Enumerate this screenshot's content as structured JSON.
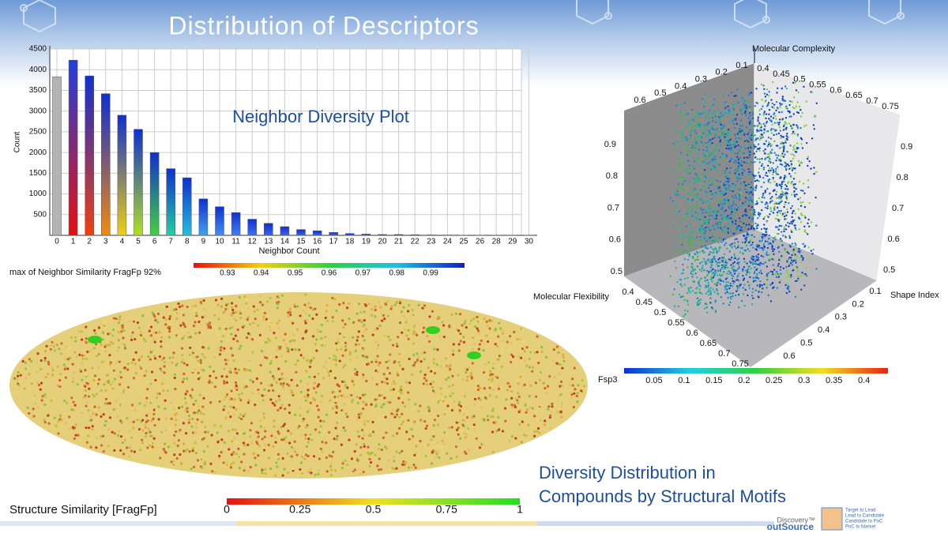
{
  "title": "Distribution of Descriptors",
  "chart_data": {
    "type": "bar",
    "title": "Neighbor Diversity Plot",
    "x_label": "Neighbor Count",
    "y_label": "Count",
    "categories": [
      "0",
      "1",
      "2",
      "3",
      "4",
      "5",
      "6",
      "7",
      "8",
      "9",
      "10",
      "11",
      "12",
      "13",
      "14",
      "15",
      "16",
      "17",
      "18",
      "19",
      "20",
      "21",
      "22",
      "23",
      "24",
      "25",
      "26",
      "28",
      "29",
      "30"
    ],
    "values": [
      3830,
      4230,
      3850,
      3420,
      2900,
      2560,
      2000,
      1610,
      1390,
      880,
      690,
      550,
      390,
      290,
      210,
      140,
      110,
      70,
      45,
      30,
      20,
      20,
      15,
      10,
      8,
      5,
      4,
      3,
      2,
      2
    ],
    "colors": [
      [
        "#b4b4b4",
        "#b4b4b4"
      ],
      [
        "#e81010",
        "#2040e0"
      ],
      [
        "#f04010",
        "#1030d0"
      ],
      [
        "#f08a10",
        "#1030d0"
      ],
      [
        "#f0d010",
        "#1030d0"
      ],
      [
        "#b0e020",
        "#1030d0"
      ],
      [
        "#40d040",
        "#1030d0"
      ],
      [
        "#20d0a0",
        "#1030d0"
      ],
      [
        "#20c0e0",
        "#1030d0"
      ],
      [
        "#40a0f0",
        "#1030d0"
      ],
      [
        "#4090f0",
        "#1030d0"
      ],
      [
        "#4080f0",
        "#1030d0"
      ],
      [
        "#4070f0",
        "#1030d0"
      ],
      [
        "#4060f0",
        "#1030d0"
      ],
      [
        "#4060f0",
        "#1030d0"
      ],
      [
        "#4060f0",
        "#1030d0"
      ],
      [
        "#4060f0",
        "#1030d0"
      ],
      [
        "#4060f0",
        "#1030d0"
      ],
      [
        "#4060f0",
        "#1030d0"
      ],
      [
        "#4060f0",
        "#1030d0"
      ],
      [
        "#4060f0",
        "#1030d0"
      ],
      [
        "#4060f0",
        "#1030d0"
      ],
      [
        "#4060f0",
        "#1030d0"
      ],
      [
        "#4060f0",
        "#1030d0"
      ],
      [
        "#4060f0",
        "#1030d0"
      ],
      [
        "#4060f0",
        "#1030d0"
      ],
      [
        "#4060f0",
        "#1030d0"
      ],
      [
        "#4060f0",
        "#1030d0"
      ],
      [
        "#4060f0",
        "#1030d0"
      ],
      [
        "#4060f0",
        "#1030d0"
      ]
    ],
    "ylim": [
      0,
      4500
    ],
    "yticks": [
      500,
      1000,
      1500,
      2000,
      2500,
      3000,
      3500,
      4000,
      4500
    ],
    "grid": true
  },
  "neighbor_colorbar": {
    "label": "max of Neighbor Similarity FragFp 92%",
    "lim": [
      0.92,
      1.0
    ],
    "ticks": [
      0.93,
      0.94,
      0.95,
      0.96,
      0.97,
      0.98,
      0.99
    ]
  },
  "scatter3d": {
    "z_label": "Molecular Complexity",
    "x_label": "Molecular Flexibility",
    "y_label": "Shape Index",
    "back_shape_ticks": [
      0.6,
      0.5,
      0.4,
      0.3,
      0.2,
      0.1
    ],
    "back_flex_ticks": [
      0.4,
      0.45,
      0.5,
      0.55,
      0.6,
      0.65,
      0.7,
      0.75
    ],
    "left_z_ticks": [
      0.9,
      0.8,
      0.7,
      0.6,
      0.5
    ],
    "right_z_ticks": [
      0.9,
      0.8,
      0.7,
      0.6,
      0.5
    ],
    "flex_ticks": [
      0.4,
      0.45,
      0.5,
      0.55,
      0.6,
      0.65,
      0.7,
      0.75
    ],
    "shape_ticks": [
      0.1,
      0.2,
      0.3,
      0.4,
      0.5,
      0.6
    ]
  },
  "fsp3_colorbar": {
    "label": "Fsp3",
    "lim": [
      0,
      0.44
    ],
    "ticks": [
      0.05,
      0.1,
      0.15,
      0.2,
      0.25,
      0.3,
      0.35,
      0.4
    ]
  },
  "structure_colorbar": {
    "label": "Structure Similarity [FragFp]",
    "lim": [
      0,
      1
    ],
    "ticks": [
      0,
      0.25,
      0.5,
      0.75,
      1
    ]
  },
  "caption": [
    "Diversity Distribution in",
    "Compounds by Structural Motifs"
  ],
  "logo": {
    "brand_top": "Discovery™",
    "brand_bottom": "outSource",
    "steps": [
      "Target to Lead",
      "Lead to Candidate",
      "Candidate to PoC",
      "PoC to Market"
    ]
  }
}
